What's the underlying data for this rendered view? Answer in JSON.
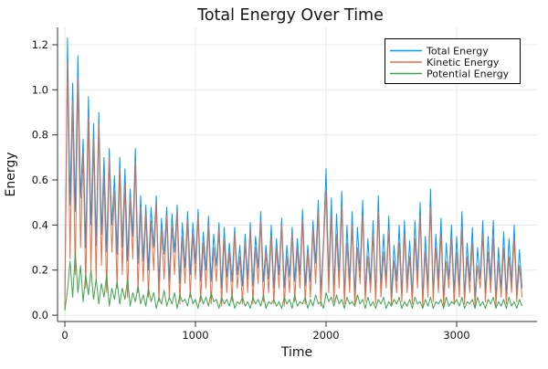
{
  "chart_data": {
    "type": "line",
    "title": "Total Energy Over Time",
    "xlabel": "Time",
    "ylabel": "Energy",
    "xlim": [
      -56,
      3615
    ],
    "ylim": [
      -0.028,
      1.277
    ],
    "xticks": [
      0,
      1000,
      2000,
      3000
    ],
    "xticklabels": [
      "0",
      "1000",
      "2000",
      "3000"
    ],
    "yticks": [
      0.0,
      0.2,
      0.4,
      0.6,
      0.8,
      1.0,
      1.2
    ],
    "yticklabels": [
      "0.0",
      "0.2",
      "0.4",
      "0.6",
      "0.8",
      "1.0",
      "1.2"
    ],
    "grid": true,
    "legend_position": "top-right",
    "x_start": 0,
    "x_step": 20,
    "series": [
      {
        "name": "Total Energy",
        "color": "#009AFA",
        "values": [
          0.05,
          1.23,
          0.49,
          1.03,
          0.46,
          1.15,
          0.52,
          0.78,
          0.3,
          0.97,
          0.4,
          0.85,
          0.31,
          0.9,
          0.36,
          0.7,
          0.28,
          0.74,
          0.4,
          0.62,
          0.27,
          0.7,
          0.3,
          0.65,
          0.24,
          0.56,
          0.35,
          0.74,
          0.23,
          0.53,
          0.24,
          0.49,
          0.2,
          0.48,
          0.3,
          0.53,
          0.14,
          0.43,
          0.27,
          0.48,
          0.15,
          0.45,
          0.28,
          0.49,
          0.14,
          0.41,
          0.21,
          0.46,
          0.18,
          0.41,
          0.23,
          0.47,
          0.15,
          0.37,
          0.2,
          0.44,
          0.15,
          0.36,
          0.22,
          0.41,
          0.12,
          0.39,
          0.17,
          0.32,
          0.15,
          0.39,
          0.18,
          0.31,
          0.13,
          0.36,
          0.16,
          0.41,
          0.13,
          0.35,
          0.21,
          0.46,
          0.15,
          0.31,
          0.16,
          0.4,
          0.12,
          0.34,
          0.18,
          0.43,
          0.12,
          0.31,
          0.17,
          0.39,
          0.15,
          0.34,
          0.18,
          0.47,
          0.13,
          0.31,
          0.15,
          0.42,
          0.23,
          0.51,
          0.1,
          0.33,
          0.65,
          0.16,
          0.52,
          0.1,
          0.45,
          0.17,
          0.55,
          0.08,
          0.4,
          0.15,
          0.46,
          0.08,
          0.39,
          0.19,
          0.51,
          0.09,
          0.34,
          0.14,
          0.42,
          0.08,
          0.53,
          0.13,
          0.36,
          0.15,
          0.44,
          0.08,
          0.31,
          0.15,
          0.4,
          0.09,
          0.42,
          0.14,
          0.33,
          0.08,
          0.42,
          0.17,
          0.5,
          0.07,
          0.35,
          0.12,
          0.56,
          0.09,
          0.36,
          0.15,
          0.43,
          0.07,
          0.32,
          0.16,
          0.4,
          0.1,
          0.35,
          0.12,
          0.46,
          0.08,
          0.32,
          0.15,
          0.39,
          0.07,
          0.3,
          0.16,
          0.42,
          0.09,
          0.35,
          0.15,
          0.42,
          0.07,
          0.3,
          0.12,
          0.37,
          0.08,
          0.34,
          0.14,
          0.4,
          0.09,
          0.29,
          0.12
        ]
      },
      {
        "name": "Kinetic Energy",
        "color": "#E36F47",
        "values": [
          0.03,
          1.12,
          0.25,
          0.95,
          0.18,
          1.05,
          0.3,
          0.72,
          0.12,
          0.88,
          0.2,
          0.78,
          0.15,
          0.85,
          0.22,
          0.62,
          0.1,
          0.7,
          0.28,
          0.55,
          0.12,
          0.65,
          0.18,
          0.58,
          0.08,
          0.52,
          0.25,
          0.68,
          0.1,
          0.48,
          0.15,
          0.45,
          0.08,
          0.42,
          0.2,
          0.5,
          0.06,
          0.38,
          0.16,
          0.44,
          0.07,
          0.4,
          0.18,
          0.46,
          0.05,
          0.35,
          0.14,
          0.42,
          0.08,
          0.36,
          0.16,
          0.44,
          0.06,
          0.32,
          0.12,
          0.4,
          0.05,
          0.3,
          0.15,
          0.38,
          0.04,
          0.34,
          0.1,
          0.28,
          0.06,
          0.36,
          0.12,
          0.26,
          0.05,
          0.32,
          0.1,
          0.38,
          0.05,
          0.3,
          0.14,
          0.42,
          0.06,
          0.28,
          0.1,
          0.35,
          0.05,
          0.3,
          0.12,
          0.4,
          0.04,
          0.26,
          0.1,
          0.36,
          0.06,
          0.3,
          0.12,
          0.42,
          0.05,
          0.28,
          0.08,
          0.38,
          0.14,
          0.46,
          0.04,
          0.3,
          0.55,
          0.1,
          0.44,
          0.06,
          0.36,
          0.12,
          0.48,
          0.05,
          0.32,
          0.1,
          0.4,
          0.04,
          0.3,
          0.14,
          0.44,
          0.06,
          0.26,
          0.1,
          0.36,
          0.05,
          0.46,
          0.08,
          0.28,
          0.12,
          0.38,
          0.04,
          0.24,
          0.1,
          0.32,
          0.06,
          0.36,
          0.1,
          0.26,
          0.05,
          0.34,
          0.12,
          0.44,
          0.04,
          0.28,
          0.08,
          0.48,
          0.06,
          0.3,
          0.1,
          0.36,
          0.04,
          0.24,
          0.12,
          0.34,
          0.05,
          0.28,
          0.08,
          0.38,
          0.05,
          0.26,
          0.1,
          0.32,
          0.04,
          0.22,
          0.12,
          0.36,
          0.06,
          0.28,
          0.1,
          0.34,
          0.04,
          0.24,
          0.08,
          0.3,
          0.05,
          0.26,
          0.1,
          0.34,
          0.06,
          0.22,
          0.08
        ]
      },
      {
        "name": "Potential Energy",
        "color": "#3DA44D",
        "values": [
          0.02,
          0.11,
          0.24,
          0.08,
          0.28,
          0.1,
          0.22,
          0.06,
          0.18,
          0.09,
          0.2,
          0.07,
          0.16,
          0.05,
          0.14,
          0.08,
          0.18,
          0.04,
          0.12,
          0.07,
          0.15,
          0.05,
          0.12,
          0.07,
          0.16,
          0.04,
          0.1,
          0.06,
          0.13,
          0.05,
          0.09,
          0.04,
          0.12,
          0.06,
          0.1,
          0.03,
          0.08,
          0.05,
          0.11,
          0.04,
          0.08,
          0.05,
          0.1,
          0.03,
          0.09,
          0.06,
          0.07,
          0.04,
          0.1,
          0.05,
          0.07,
          0.03,
          0.09,
          0.05,
          0.08,
          0.04,
          0.1,
          0.06,
          0.07,
          0.03,
          0.08,
          0.05,
          0.07,
          0.04,
          0.09,
          0.03,
          0.06,
          0.05,
          0.08,
          0.04,
          0.06,
          0.03,
          0.08,
          0.05,
          0.07,
          0.04,
          0.09,
          0.03,
          0.06,
          0.05,
          0.07,
          0.04,
          0.06,
          0.03,
          0.08,
          0.05,
          0.07,
          0.03,
          0.09,
          0.04,
          0.06,
          0.05,
          0.08,
          0.03,
          0.07,
          0.04,
          0.09,
          0.05,
          0.06,
          0.03,
          0.1,
          0.06,
          0.08,
          0.04,
          0.09,
          0.05,
          0.07,
          0.03,
          0.08,
          0.05,
          0.06,
          0.04,
          0.09,
          0.05,
          0.07,
          0.03,
          0.08,
          0.04,
          0.06,
          0.03,
          0.07,
          0.05,
          0.08,
          0.03,
          0.06,
          0.04,
          0.07,
          0.05,
          0.08,
          0.03,
          0.06,
          0.04,
          0.07,
          0.03,
          0.08,
          0.05,
          0.06,
          0.03,
          0.07,
          0.04,
          0.08,
          0.03,
          0.06,
          0.05,
          0.07,
          0.03,
          0.08,
          0.04,
          0.06,
          0.05,
          0.07,
          0.04,
          0.08,
          0.03,
          0.06,
          0.05,
          0.07,
          0.03,
          0.08,
          0.04,
          0.06,
          0.03,
          0.07,
          0.05,
          0.08,
          0.03,
          0.06,
          0.04,
          0.07,
          0.03,
          0.08,
          0.04,
          0.06,
          0.03,
          0.07,
          0.04
        ]
      }
    ]
  }
}
